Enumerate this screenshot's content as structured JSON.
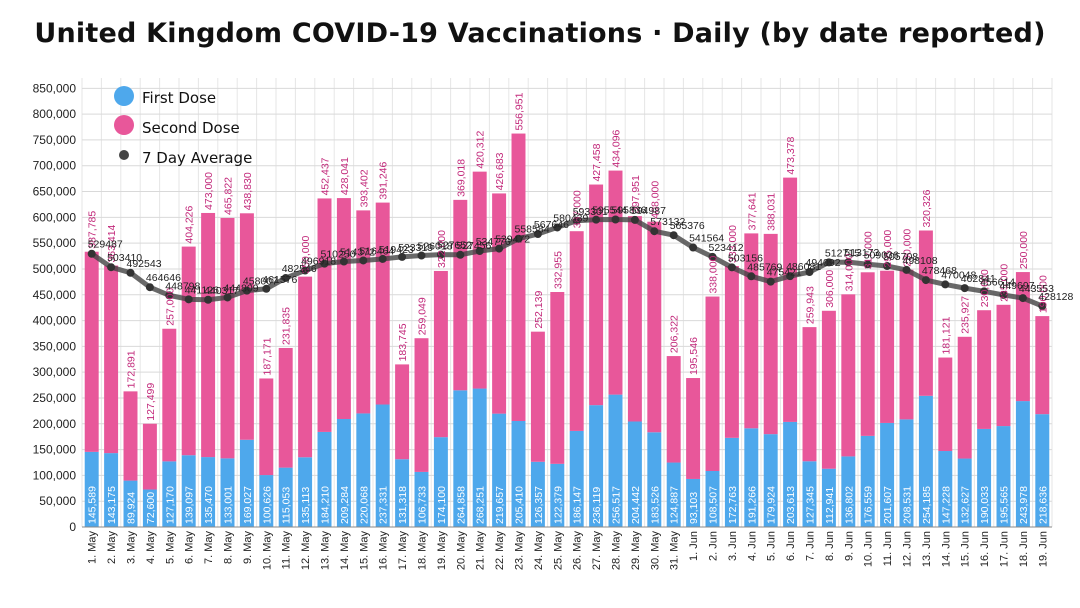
{
  "chart_data": {
    "type": "bar",
    "title": "United Kingdom COVID-19 Vaccinations · Daily (by date reported)",
    "xlabel": "",
    "ylabel": "",
    "ylim": [
      0,
      870000
    ],
    "yticks": [
      0,
      50000,
      100000,
      150000,
      200000,
      250000,
      300000,
      350000,
      400000,
      450000,
      500000,
      550000,
      600000,
      650000,
      700000,
      750000,
      800000,
      850000
    ],
    "ytick_labels": [
      "0",
      "50,000",
      "100,000",
      "150,000",
      "200,000",
      "250,000",
      "300,000",
      "350,000",
      "400,000",
      "450,000",
      "500,000",
      "550,000",
      "600,000",
      "650,000",
      "700,000",
      "750,000",
      "800,000",
      "850,000"
    ],
    "stacked": true,
    "grid": true,
    "legend_position": "top-left",
    "categories": [
      "1. May",
      "2. May",
      "3. May",
      "4. May",
      "5. May",
      "6. May",
      "7. May",
      "8. May",
      "9. May",
      "10. May",
      "11. May",
      "12. May",
      "13. May",
      "14. May",
      "15. May",
      "16. May",
      "17. May",
      "18. May",
      "19. May",
      "20. May",
      "21. May",
      "22. May",
      "23. May",
      "24. May",
      "25. May",
      "26. May",
      "27. May",
      "28. May",
      "29. May",
      "30. May",
      "31. May",
      "1. Jun",
      "2. Jun",
      "3. Jun",
      "4. Jun",
      "5. Jun",
      "6. Jun",
      "7. Jun",
      "8. Jun",
      "9. Jun",
      "10. Jun",
      "11. Jun",
      "12. Jun",
      "13. Jun",
      "14. Jun",
      "15. Jun",
      "16. Jun",
      "17. Jun",
      "18. Jun",
      "19. Jun"
    ],
    "series": [
      {
        "name": "First Dose",
        "color": "#4ea8ec",
        "values": [
          145589,
          143175,
          89924,
          72600,
          127170,
          139097,
          135470,
          133001,
          169027,
          100626,
          115053,
          135113,
          184210,
          209284,
          220068,
          237331,
          131318,
          106733,
          174100,
          264858,
          268251,
          219657,
          205410,
          126357,
          122379,
          186147,
          236119,
          256517,
          204442,
          183526,
          124887,
          93103,
          108507,
          172763,
          191266,
          179924,
          203613,
          127345,
          112941,
          136802,
          176559,
          201607,
          208531,
          254185,
          147228,
          132627,
          190033,
          195565,
          243978,
          218636
        ],
        "labels": [
          "145,589",
          "143,175",
          "89,924",
          "72,600",
          "127,170",
          "139,097",
          "135,470",
          "133,001",
          "169,027",
          "100,626",
          "115,053",
          "135,113",
          "184,210",
          "209,284",
          "220,068",
          "237,331",
          "131,318",
          "106,733",
          "174,100",
          "264,858",
          "268,251",
          "219,657",
          "205,410",
          "126,357",
          "122,379",
          "186,147",
          "236,119",
          "256,517",
          "204,442",
          "183,526",
          "124,887",
          "93,103",
          "108,507",
          "172,763",
          "191,266",
          "179,924",
          "203,613",
          "127,345",
          "112,941",
          "136,802",
          "176,559",
          "201,607",
          "208,531",
          "254,185",
          "147,228",
          "132,627",
          "190,033",
          "195,565",
          "243,978",
          "218,636"
        ]
      },
      {
        "name": "Second Dose",
        "color": "#e8579a",
        "values": [
          387785,
          363414,
          172891,
          127499,
          257000,
          404226,
          473000,
          465822,
          438830,
          187171,
          231835,
          350000,
          452437,
          428041,
          393402,
          391246,
          183745,
          259049,
          322000,
          369018,
          420312,
          426683,
          556951,
          252139,
          332955,
          387000,
          427458,
          434096,
          397951,
          408000,
          206322,
          195546,
          338000,
          333000,
          377641,
          388031,
          473378,
          259943,
          306000,
          314000,
          317000,
          295000,
          290000,
          320326,
          181121,
          235927,
          230000,
          235000,
          250000,
          190000
        ],
        "labels": [
          "387,785",
          "363,414",
          "172,891",
          "127,499",
          "257,000",
          "404,226",
          "473,000",
          "465,822",
          "438,830",
          "187,171",
          "231,835",
          "350,000",
          "452,437",
          "428,041",
          "393,402",
          "391,246",
          "183,745",
          "259,049",
          "322,000",
          "369,018",
          "420,312",
          "426,683",
          "556,951",
          "252,139",
          "332,955",
          "387,000",
          "427,458",
          "434,096",
          "397,951",
          "408,000",
          "206,322",
          "195,546",
          "338,000",
          "333,000",
          "377,641",
          "388,031",
          "473,378",
          "259,943",
          "306,000",
          "314,000",
          "317,000",
          "295,000",
          "290,000",
          "320,326",
          "181,121",
          "235,927",
          "230,000",
          "235,000",
          "250,000",
          "190,000"
        ]
      },
      {
        "name": "7 Day Average",
        "type": "line",
        "color": "#444444",
        "values": [
          529487,
          503410,
          492543,
          464646,
          448798,
          441126,
          440317,
          444809,
          458007,
          461576,
          482546,
          496918,
          510250,
          514372,
          516464,
          519423,
          523319,
          526018,
          527652,
          527456,
          534776,
          539472,
          558584,
          567646,
          580439,
          593301,
          595544,
          595836,
          594987,
          573132,
          565376,
          541564,
          523412,
          503156,
          485769,
          475421,
          486081,
          494092,
          512715,
          513173,
          509036,
          505708,
          498108,
          478468,
          470048,
          462841,
          456614,
          449697,
          443553,
          428128
        ],
        "labels": [
          "529487",
          "503410",
          "492543",
          "464646",
          "448798",
          "441126",
          "440317",
          "444809",
          "458007",
          "461576",
          "482546",
          "496918",
          "510250",
          "514372",
          "516464",
          "519423",
          "523319",
          "526018",
          "527652",
          "527456",
          "534776",
          "539472",
          "558584",
          "567646",
          "580439",
          "593301",
          "595544",
          "595836",
          "594987",
          "573132",
          "565376",
          "541564",
          "523412",
          "503156",
          "485769",
          "475421",
          "486081",
          "494092",
          "512715",
          "513173",
          "509036",
          "505708",
          "498108",
          "478468",
          "470048",
          "462841",
          "456614",
          "449697",
          "443553",
          "428128"
        ]
      }
    ]
  },
  "legend": {
    "first_dose": "First Dose",
    "second_dose": "Second Dose",
    "avg": "7 Day Average"
  }
}
